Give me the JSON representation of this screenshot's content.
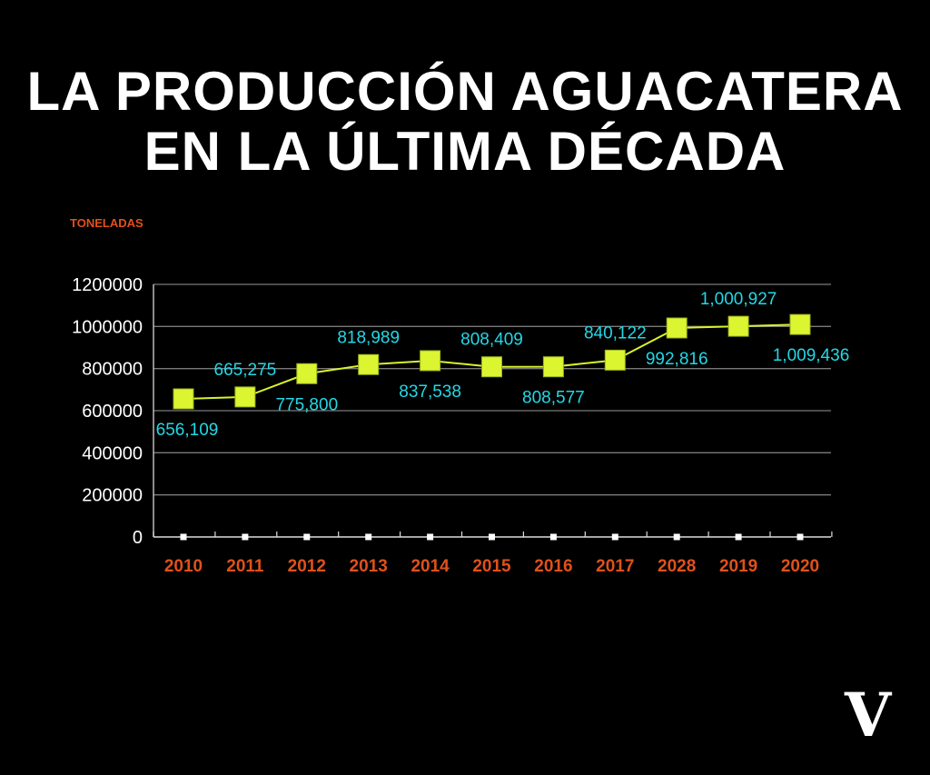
{
  "title_lines": [
    "LA PRODUCCIÓN AGUACATERA",
    "EN LA ÚLTIMA DÉCADA"
  ],
  "logo": "V",
  "chart_data": {
    "type": "line",
    "title": "LA PRODUCCIÓN AGUACATERA EN LA ÚLTIMA DÉCADA",
    "ylabel": "TONELADAS",
    "xlabel": "",
    "categories": [
      "2010",
      "2011",
      "2012",
      "2013",
      "2014",
      "2015",
      "2016",
      "2017",
      "2028",
      "2019",
      "2020"
    ],
    "values": [
      656109,
      665275,
      775800,
      818989,
      837538,
      808409,
      808577,
      840122,
      992816,
      1000927,
      1009436
    ],
    "data_labels": [
      "656,109",
      "665,275",
      "775,800",
      "818,989",
      "837,538",
      "808,409",
      "808,577",
      "840,122",
      "992,816",
      "1,000,927",
      "1,009,436"
    ],
    "label_positions": [
      "below",
      "above",
      "below",
      "above",
      "below",
      "above",
      "below",
      "above",
      "below",
      "above",
      "below"
    ],
    "ylim": [
      0,
      1200000
    ],
    "yticks": [
      "0",
      "200000",
      "400000",
      "600000",
      "800000",
      "1000000",
      "1200000"
    ],
    "grid": true,
    "colors": {
      "line": "#d9f22b",
      "marker": "#dcf531",
      "labels": "#22d8e6",
      "xticks": "#e0511a",
      "yticks": "#ffffff",
      "grid": "#7a7a7a"
    }
  }
}
